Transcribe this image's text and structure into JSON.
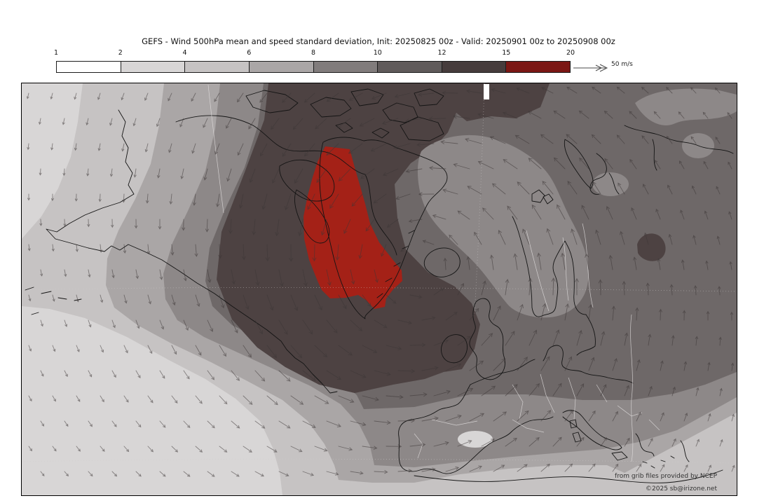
{
  "title": "GEFS - Wind 500hPa mean and speed standard deviation, Init: 20250825 00z - Valid: 20250901 00z to 20250908 00z",
  "colorbar": {
    "tick_labels": [
      "1",
      "2",
      "4",
      "6",
      "8",
      "10",
      "12",
      "15",
      "20"
    ],
    "segment_colors": [
      "#ffffff",
      "#d8d6d6",
      "#c6c3c3",
      "#aaa6a6",
      "#817c7c",
      "#5f5a5a",
      "#463c3c",
      "#7b1714"
    ],
    "arrow_label": "50 m/s"
  },
  "map": {
    "attribution": [
      "from grib files provided by NCEP",
      "©2025 sb@irizone.net"
    ],
    "colors": {
      "band_2_4": "#d8d6d6",
      "band_4_6": "#c6c3c3",
      "band_6_8": "#aaa6a6",
      "band_8_10": "#8d8888",
      "band_10_12": "#6e6868",
      "band_12_15": "#4d4242",
      "band_15_20": "#a42117",
      "data_gap": "#ffffff",
      "coastline": "#141414",
      "country_border": "#e3e0e0",
      "graticule": "#cfcccc",
      "wind_arrow": "#3c3636",
      "attribution_text": "#333333"
    }
  }
}
